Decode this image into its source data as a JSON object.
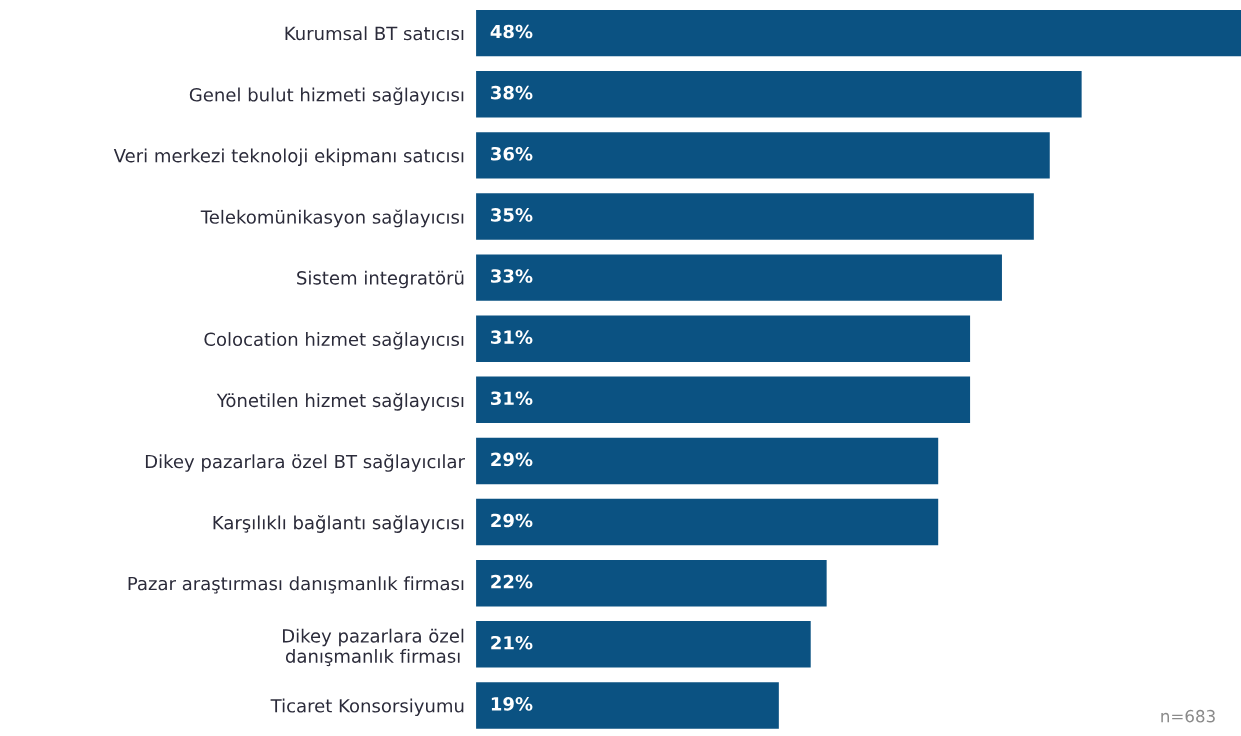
{
  "chart_data": {
    "type": "bar",
    "orientation": "horizontal",
    "categories": [
      "Kurumsal BT satıcısı",
      "Genel bulut hizmeti sağlayıcısı",
      "Veri merkezi teknoloji ekipmanı satıcısı",
      "Telekomünikasyon sağlayıcısı",
      "Sistem integratörü",
      "Colocation hizmet sağlayıcısı",
      "Yönetilen hizmet sağlayıcısı",
      "Dikey pazarlara özel BT sağlayıcılar",
      "Karşılıklı bağlantı sağlayıcısı",
      "Pazar araştırması danışmanlık firması",
      "Dikey pazarlara özel\ndanışmanlık firması",
      "Ticaret Konsorsiyumu"
    ],
    "values": [
      48,
      38,
      36,
      35,
      33,
      31,
      31,
      29,
      29,
      22,
      21,
      19
    ],
    "value_labels": [
      "48%",
      "38%",
      "36%",
      "35%",
      "33%",
      "31%",
      "31%",
      "29%",
      "29%",
      "22%",
      "21%",
      "19%"
    ],
    "color": "#0b5282",
    "tick_labels": "y",
    "grid": false,
    "legend": false,
    "annotations": [
      "n=683"
    ]
  }
}
